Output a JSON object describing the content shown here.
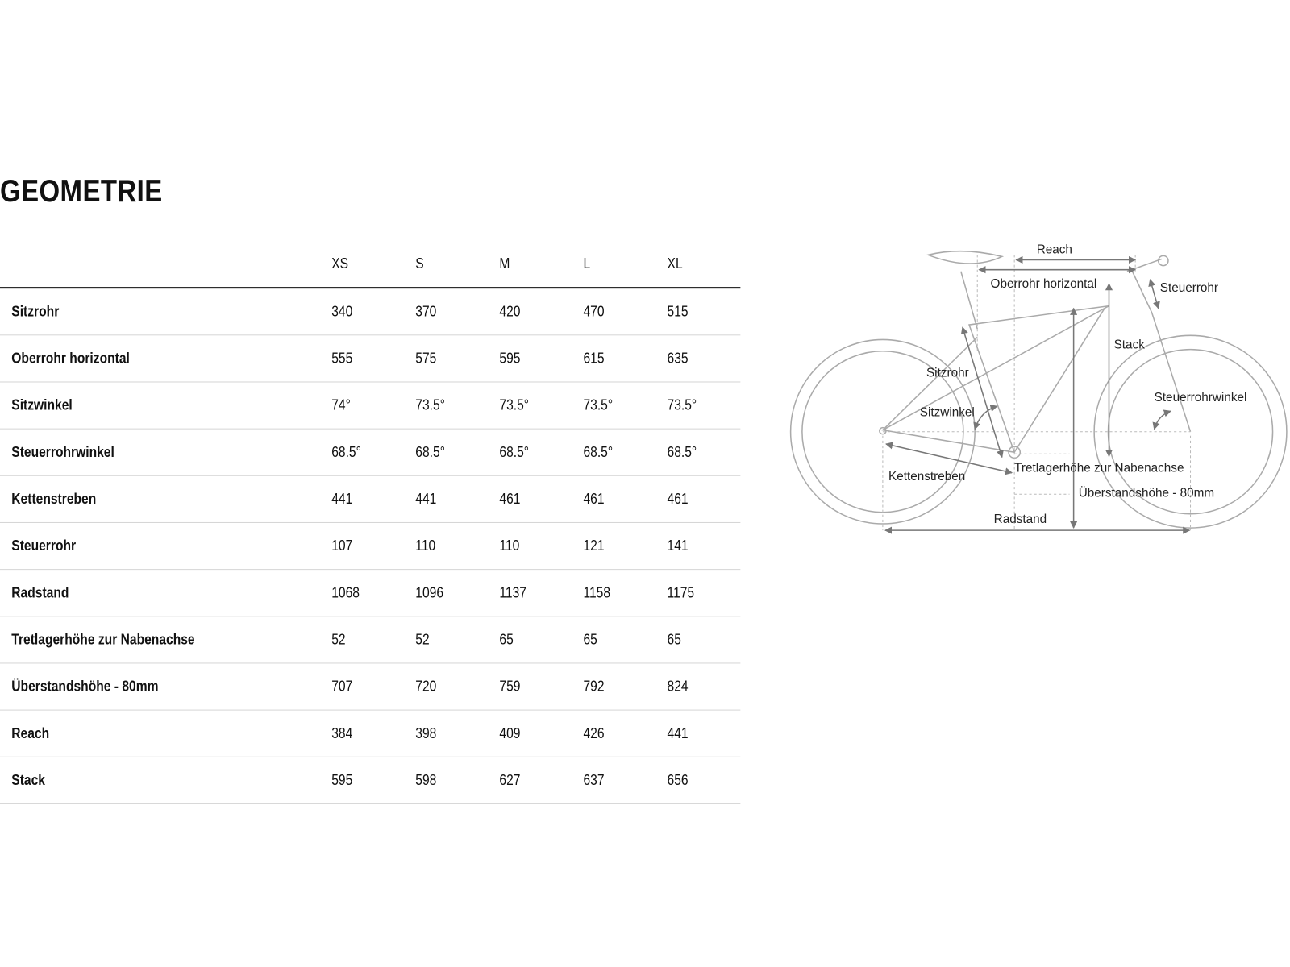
{
  "title": "GEOMETRIE",
  "table": {
    "sizes": [
      "XS",
      "S",
      "M",
      "L",
      "XL"
    ],
    "rows": [
      {
        "label": "Sitzrohr",
        "values": [
          "340",
          "370",
          "420",
          "470",
          "515"
        ]
      },
      {
        "label": "Oberrohr horizontal",
        "values": [
          "555",
          "575",
          "595",
          "615",
          "635"
        ]
      },
      {
        "label": "Sitzwinkel",
        "values": [
          "74°",
          "73.5°",
          "73.5°",
          "73.5°",
          "73.5°"
        ]
      },
      {
        "label": "Steuerrohrwinkel",
        "values": [
          "68.5°",
          "68.5°",
          "68.5°",
          "68.5°",
          "68.5°"
        ]
      },
      {
        "label": "Kettenstreben",
        "values": [
          "441",
          "441",
          "461",
          "461",
          "461"
        ]
      },
      {
        "label": "Steuerrohr",
        "values": [
          "107",
          "110",
          "110",
          "121",
          "141"
        ]
      },
      {
        "label": "Radstand",
        "values": [
          "1068",
          "1096",
          "1137",
          "1158",
          "1175"
        ]
      },
      {
        "label": "Tretlagerhöhe zur Nabenachse",
        "values": [
          "52",
          "52",
          "65",
          "65",
          "65"
        ]
      },
      {
        "label": "Überstandshöhe - 80mm",
        "values": [
          "707",
          "720",
          "759",
          "792",
          "824"
        ]
      },
      {
        "label": "Reach",
        "values": [
          "384",
          "398",
          "409",
          "426",
          "441"
        ]
      },
      {
        "label": "Stack",
        "values": [
          "595",
          "598",
          "627",
          "637",
          "656"
        ]
      }
    ]
  },
  "diagram": {
    "labels": {
      "reach": "Reach",
      "oberrohr": "Oberrohr horizontal",
      "steuerrohr": "Steuerrohr",
      "stack": "Stack",
      "sitzrohr": "Sitzrohr",
      "sitzwinkel": "Sitzwinkel",
      "steuerrohrwinkel": "Steuerrohrwinkel",
      "kettenstreben": "Kettenstreben",
      "tretlager": "Tretlagerhöhe zur Nabenachse",
      "ueberstand": "Überstandshöhe - 80mm",
      "radstand": "Radstand"
    },
    "frame_color": "#aaaaaa",
    "arrow_color": "#777777"
  }
}
